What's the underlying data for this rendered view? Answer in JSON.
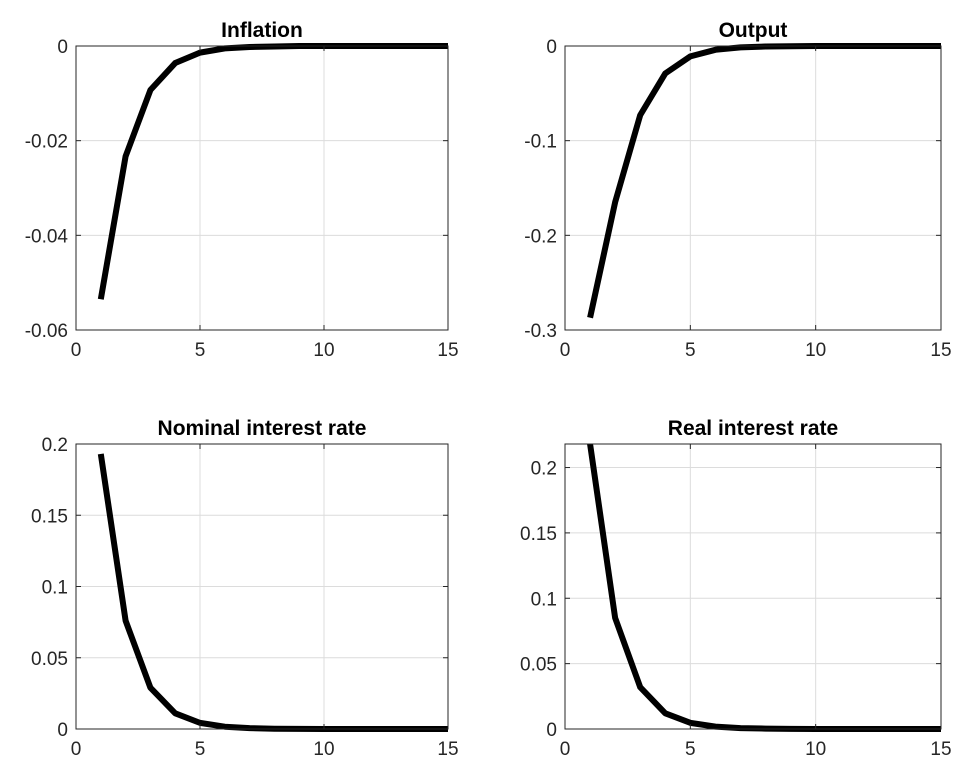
{
  "chart_data": [
    {
      "type": "line",
      "title": "Inflation",
      "xlabel": "",
      "ylabel": "",
      "xlim": [
        0,
        15
      ],
      "ylim": [
        -0.06,
        0
      ],
      "xticks": [
        0,
        5,
        10,
        15
      ],
      "xtick_labels": [
        "0",
        "5",
        "10",
        "15"
      ],
      "yticks": [
        -0.06,
        -0.04,
        -0.02,
        0
      ],
      "ytick_labels": [
        "-0.06",
        "-0.04",
        "-0.02",
        "0"
      ],
      "grid": true,
      "series": [
        {
          "x": [
            1,
            2,
            3,
            4,
            5,
            6,
            7,
            8,
            9,
            10,
            11,
            12,
            13,
            14,
            15
          ],
          "y": [
            -0.0535,
            -0.0233,
            -0.0093,
            -0.0036,
            -0.0014,
            -0.0005,
            -0.0002,
            -0.0001,
            0,
            0,
            0,
            0,
            0,
            0,
            0
          ]
        }
      ]
    },
    {
      "type": "line",
      "title": "Output",
      "xlabel": "",
      "ylabel": "",
      "xlim": [
        0,
        15
      ],
      "ylim": [
        -0.3,
        0
      ],
      "xticks": [
        0,
        5,
        10,
        15
      ],
      "xtick_labels": [
        "0",
        "5",
        "10",
        "15"
      ],
      "yticks": [
        -0.3,
        -0.2,
        -0.1,
        0
      ],
      "ytick_labels": [
        "-0.3",
        "-0.2",
        "-0.1",
        "0"
      ],
      "grid": true,
      "series": [
        {
          "x": [
            1,
            2,
            3,
            4,
            5,
            6,
            7,
            8,
            9,
            10,
            11,
            12,
            13,
            14,
            15
          ],
          "y": [
            -0.287,
            -0.165,
            -0.073,
            -0.029,
            -0.011,
            -0.004,
            -0.0015,
            -0.0005,
            -0.0002,
            0,
            0,
            0,
            0,
            0,
            0
          ]
        }
      ]
    },
    {
      "type": "line",
      "title": "Nominal interest rate",
      "xlabel": "",
      "ylabel": "",
      "xlim": [
        0,
        15
      ],
      "ylim": [
        0,
        0.2
      ],
      "xticks": [
        0,
        5,
        10,
        15
      ],
      "xtick_labels": [
        "0",
        "5",
        "10",
        "15"
      ],
      "yticks": [
        0,
        0.05,
        0.1,
        0.15,
        0.2
      ],
      "ytick_labels": [
        "0",
        "0.05",
        "0.1",
        "0.15",
        "0.2"
      ],
      "grid": true,
      "series": [
        {
          "x": [
            1,
            2,
            3,
            4,
            5,
            6,
            7,
            8,
            9,
            10,
            11,
            12,
            13,
            14,
            15
          ],
          "y": [
            0.193,
            0.076,
            0.029,
            0.011,
            0.0043,
            0.0016,
            0.0006,
            0.0002,
            0.0001,
            0,
            0,
            0,
            0,
            0,
            0
          ]
        }
      ]
    },
    {
      "type": "line",
      "title": "Real interest rate",
      "xlabel": "",
      "ylabel": "",
      "xlim": [
        0,
        15
      ],
      "ylim": [
        0,
        0.218
      ],
      "xticks": [
        0,
        5,
        10,
        15
      ],
      "xtick_labels": [
        "0",
        "5",
        "10",
        "15"
      ],
      "yticks": [
        0,
        0.05,
        0.1,
        0.15,
        0.2
      ],
      "ytick_labels": [
        "0",
        "0.05",
        "0.1",
        "0.15",
        "0.2"
      ],
      "grid": true,
      "series": [
        {
          "x": [
            1,
            2,
            3,
            4,
            5,
            6,
            7,
            8,
            9,
            10,
            11,
            12,
            13,
            14,
            15
          ],
          "y": [
            0.218,
            0.085,
            0.032,
            0.012,
            0.0047,
            0.0018,
            0.0007,
            0.0003,
            0.0001,
            0,
            0,
            0,
            0,
            0,
            0
          ]
        }
      ]
    }
  ]
}
